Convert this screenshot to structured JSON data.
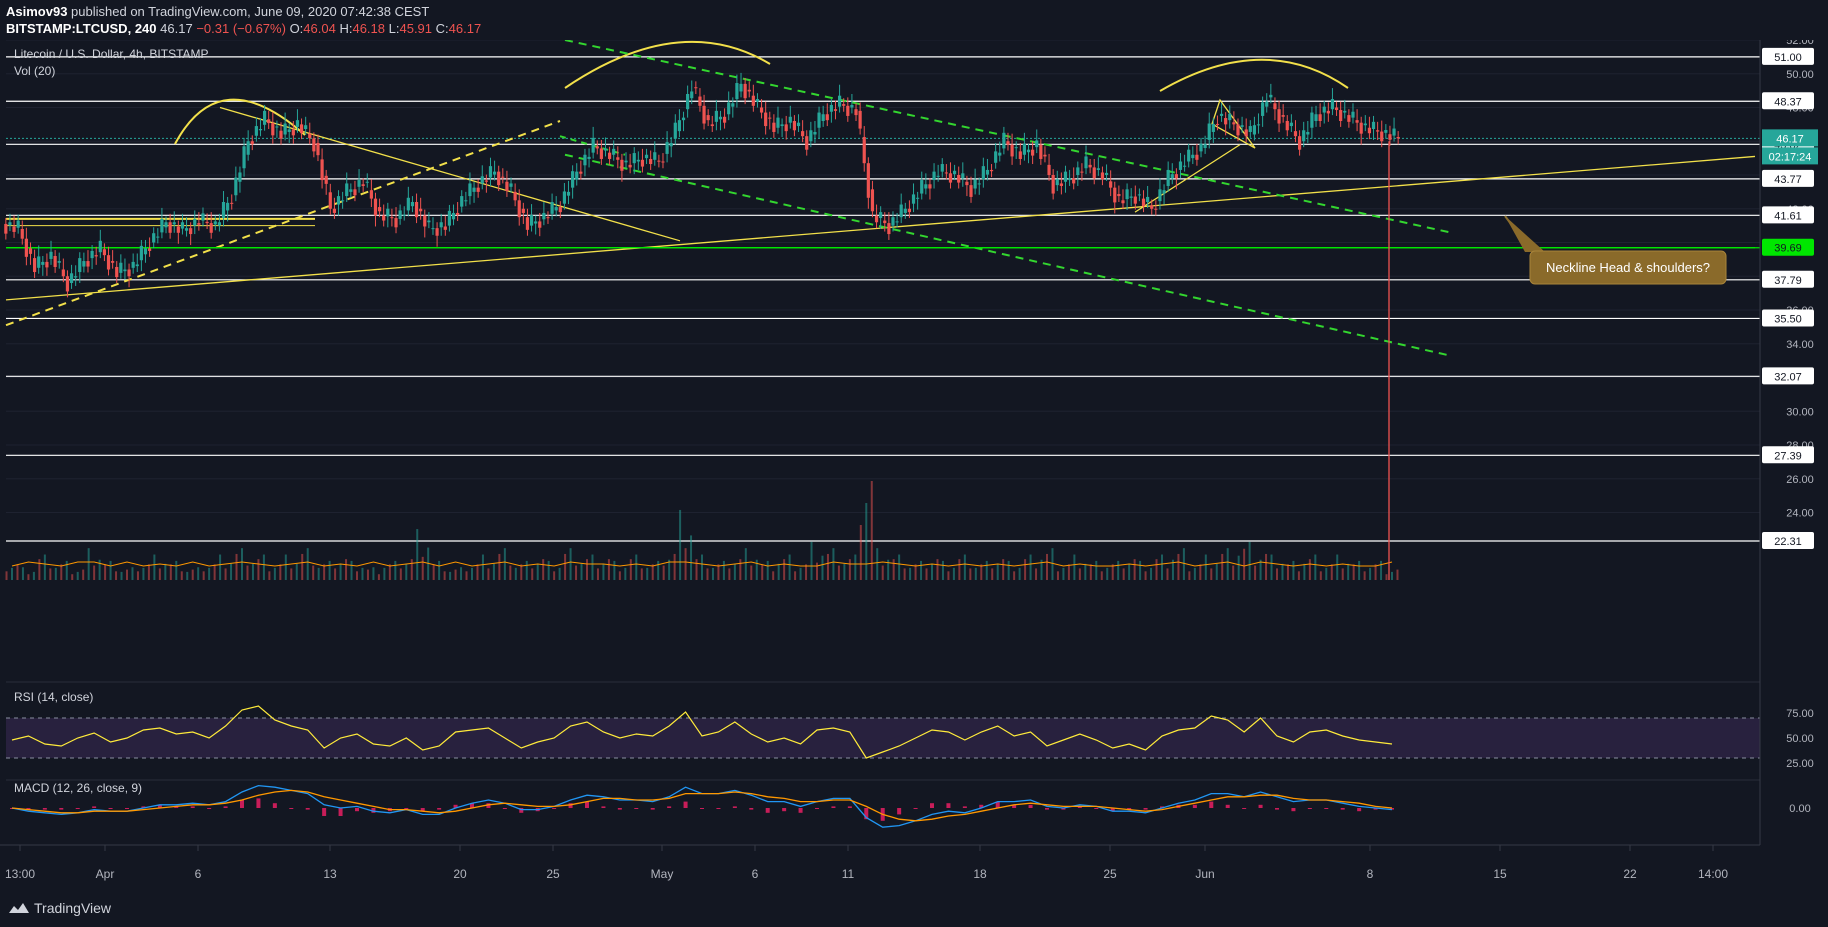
{
  "header": {
    "publisher": "Asimov93",
    "published_text": "published on TradingView.com, June 09, 2020 07:42:38 CEST",
    "symbol": "BITSTAMP:LTCUSD",
    "interval": "240",
    "last": "46.17",
    "change": "−0.31 (−0.67%)",
    "o_label": "O:",
    "o": "46.04",
    "h_label": "H:",
    "h": "46.18",
    "l_label": "L:",
    "l": "45.91",
    "c_label": "C:",
    "c": "46.17"
  },
  "footer": {
    "brand": "TradingView"
  },
  "colors": {
    "bg": "#131722",
    "up": "#26a69a",
    "down": "#ef5350",
    "yellow": "#f2e04a",
    "green_dash": "#33d62f",
    "white": "#ffffff",
    "rsi": "#ffeb3b",
    "rsi_band": "#3a2a55",
    "macd": "#2196f3",
    "signal": "#ff9800",
    "hist_pos": "#e91e63",
    "hist_neg": "#e91e63",
    "axis_text": "#b2b5be"
  },
  "chart_data": {
    "type": "line",
    "title": "Litecoin / U.S. Dollar, 4h, BITSTAMP",
    "volume_label": "Vol (20)",
    "ylim": [
      20,
      52
    ],
    "y_ticks": [
      24,
      26,
      28,
      30,
      32,
      34,
      36,
      38,
      40,
      42,
      44,
      46,
      48,
      50,
      52
    ],
    "x_ticks": [
      "13:00",
      "Apr",
      "6",
      "13",
      "20",
      "25",
      "May",
      "6",
      "11",
      "18",
      "25",
      "Jun",
      "8",
      "15",
      "22",
      "14:00"
    ],
    "horizontal_levels": [
      51.0,
      48.37,
      45.82,
      43.77,
      41.61,
      39.69,
      37.79,
      35.5,
      32.07,
      27.39,
      22.31
    ],
    "level_colors": {
      "39.69": "#00e600"
    },
    "current_price": "46.17",
    "countdown": "02:17:24",
    "price_path": [
      {
        "d": 0,
        "p": 40.8
      },
      {
        "d": 1,
        "p": 38.5
      },
      {
        "d": 2,
        "p": 39.2
      },
      {
        "d": 3,
        "p": 37.6
      },
      {
        "d": 4,
        "p": 38.9
      },
      {
        "d": 5,
        "p": 39.6
      },
      {
        "d": 6,
        "p": 38.2
      },
      {
        "d": 7,
        "p": 38.6
      },
      {
        "d": 8,
        "p": 40.0
      },
      {
        "d": 9,
        "p": 41.2
      },
      {
        "d": 10,
        "p": 40.7
      },
      {
        "d": 11,
        "p": 41.3
      },
      {
        "d": 12,
        "p": 41.0
      },
      {
        "d": 13,
        "p": 42.8
      },
      {
        "d": 14,
        "p": 46.0
      },
      {
        "d": 15,
        "p": 47.3
      },
      {
        "d": 16,
        "p": 46.4
      },
      {
        "d": 17,
        "p": 47.0
      },
      {
        "d": 18,
        "p": 45.9
      },
      {
        "d": 19,
        "p": 42.0
      },
      {
        "d": 20,
        "p": 43.0
      },
      {
        "d": 21,
        "p": 43.6
      },
      {
        "d": 22,
        "p": 41.6
      },
      {
        "d": 23,
        "p": 41.4
      },
      {
        "d": 24,
        "p": 42.4
      },
      {
        "d": 25,
        "p": 40.8
      },
      {
        "d": 26,
        "p": 41.0
      },
      {
        "d": 27,
        "p": 42.5
      },
      {
        "d": 28,
        "p": 43.5
      },
      {
        "d": 29,
        "p": 44.2
      },
      {
        "d": 30,
        "p": 43.0
      },
      {
        "d": 31,
        "p": 41.0
      },
      {
        "d": 32,
        "p": 41.5
      },
      {
        "d": 33,
        "p": 42.3
      },
      {
        "d": 34,
        "p": 44.2
      },
      {
        "d": 35,
        "p": 45.7
      },
      {
        "d": 36,
        "p": 45.2
      },
      {
        "d": 37,
        "p": 44.6
      },
      {
        "d": 38,
        "p": 45.0
      },
      {
        "d": 39,
        "p": 44.8
      },
      {
        "d": 40,
        "p": 46.6
      },
      {
        "d": 41,
        "p": 49.2
      },
      {
        "d": 42,
        "p": 47.0
      },
      {
        "d": 43,
        "p": 47.6
      },
      {
        "d": 44,
        "p": 49.4
      },
      {
        "d": 45,
        "p": 48.0
      },
      {
        "d": 46,
        "p": 46.8
      },
      {
        "d": 47,
        "p": 47.2
      },
      {
        "d": 48,
        "p": 46.0
      },
      {
        "d": 49,
        "p": 47.6
      },
      {
        "d": 50,
        "p": 48.2
      },
      {
        "d": 51,
        "p": 47.8
      },
      {
        "d": 52,
        "p": 41.6
      },
      {
        "d": 53,
        "p": 41.0
      },
      {
        "d": 54,
        "p": 42.0
      },
      {
        "d": 55,
        "p": 43.2
      },
      {
        "d": 56,
        "p": 44.2
      },
      {
        "d": 57,
        "p": 44.0
      },
      {
        "d": 58,
        "p": 43.2
      },
      {
        "d": 59,
        "p": 44.3
      },
      {
        "d": 60,
        "p": 46.0
      },
      {
        "d": 61,
        "p": 45.2
      },
      {
        "d": 62,
        "p": 45.8
      },
      {
        "d": 63,
        "p": 43.4
      },
      {
        "d": 64,
        "p": 43.8
      },
      {
        "d": 65,
        "p": 44.6
      },
      {
        "d": 66,
        "p": 44.0
      },
      {
        "d": 67,
        "p": 42.5
      },
      {
        "d": 68,
        "p": 42.8
      },
      {
        "d": 69,
        "p": 42.0
      },
      {
        "d": 70,
        "p": 43.8
      },
      {
        "d": 71,
        "p": 44.8
      },
      {
        "d": 72,
        "p": 45.6
      },
      {
        "d": 73,
        "p": 47.5
      },
      {
        "d": 74,
        "p": 47.0
      },
      {
        "d": 75,
        "p": 46.4
      },
      {
        "d": 76,
        "p": 48.6
      },
      {
        "d": 77,
        "p": 47.2
      },
      {
        "d": 78,
        "p": 46.0
      },
      {
        "d": 79,
        "p": 47.6
      },
      {
        "d": 80,
        "p": 48.0
      },
      {
        "d": 81,
        "p": 47.4
      },
      {
        "d": 82,
        "p": 46.8
      },
      {
        "d": 83,
        "p": 46.5
      },
      {
        "d": 84,
        "p": 46.17
      }
    ],
    "volume_values": [
      3,
      2,
      4,
      3,
      2,
      5,
      3,
      2,
      3,
      4,
      3,
      2,
      3,
      4,
      5,
      4,
      3,
      4,
      5,
      3,
      4,
      3,
      2,
      3,
      4,
      8,
      3,
      2,
      3,
      4,
      5,
      3,
      4,
      3,
      5,
      4,
      4,
      3,
      4,
      3,
      5,
      11,
      4,
      3,
      4,
      5,
      3,
      4,
      3,
      6,
      5,
      4,
      19,
      5,
      4,
      3,
      4,
      3,
      4,
      3,
      4,
      3,
      4,
      5,
      3,
      4,
      3,
      3,
      4,
      3,
      4,
      5,
      3,
      4,
      5,
      6,
      5,
      4,
      3,
      4,
      3,
      4,
      3,
      3,
      2
    ],
    "rsi": {
      "label": "RSI (14, close)",
      "y_ticks": [
        "75.00",
        "50.00",
        "25.00"
      ],
      "upper": 70,
      "lower": 30,
      "values": [
        48,
        52,
        44,
        42,
        50,
        55,
        46,
        50,
        58,
        60,
        54,
        56,
        50,
        62,
        78,
        82,
        68,
        62,
        58,
        40,
        50,
        54,
        44,
        42,
        50,
        38,
        42,
        56,
        58,
        60,
        50,
        40,
        46,
        50,
        62,
        66,
        56,
        50,
        54,
        52,
        62,
        76,
        52,
        56,
        66,
        54,
        46,
        50,
        44,
        58,
        60,
        56,
        30,
        36,
        42,
        50,
        58,
        56,
        48,
        56,
        62,
        52,
        56,
        42,
        48,
        54,
        48,
        40,
        44,
        38,
        52,
        58,
        60,
        72,
        68,
        56,
        70,
        52,
        46,
        56,
        58,
        52,
        48,
        46,
        44
      ]
    },
    "macd": {
      "label": "MACD (12, 26, close, 9)",
      "y_ticks": [
        "0.00"
      ],
      "macd": [
        0.0,
        -0.2,
        -0.3,
        -0.4,
        -0.3,
        -0.1,
        -0.2,
        -0.2,
        0.0,
        0.2,
        0.2,
        0.3,
        0.2,
        0.4,
        1.0,
        1.4,
        1.3,
        1.1,
        0.9,
        0.2,
        0.0,
        0.1,
        -0.2,
        -0.3,
        -0.1,
        -0.4,
        -0.4,
        0.0,
        0.3,
        0.5,
        0.3,
        -0.1,
        -0.1,
        0.1,
        0.5,
        0.8,
        0.7,
        0.5,
        0.5,
        0.4,
        0.7,
        1.3,
        0.9,
        0.9,
        1.1,
        0.8,
        0.4,
        0.4,
        0.1,
        0.4,
        0.6,
        0.6,
        -0.6,
        -1.2,
        -1.1,
        -0.8,
        -0.4,
        -0.2,
        -0.3,
        0.0,
        0.4,
        0.4,
        0.5,
        0.1,
        0.0,
        0.2,
        0.1,
        -0.2,
        -0.2,
        -0.3,
        0.0,
        0.3,
        0.5,
        0.9,
        0.9,
        0.7,
        1.0,
        0.7,
        0.4,
        0.5,
        0.5,
        0.3,
        0.1,
        0.0,
        -0.1
      ],
      "signal": [
        0.0,
        -0.1,
        -0.2,
        -0.3,
        -0.3,
        -0.2,
        -0.2,
        -0.2,
        -0.1,
        0.0,
        0.1,
        0.2,
        0.2,
        0.3,
        0.5,
        0.8,
        1.0,
        1.1,
        1.0,
        0.7,
        0.5,
        0.3,
        0.1,
        -0.1,
        -0.1,
        -0.2,
        -0.3,
        -0.2,
        0.0,
        0.2,
        0.3,
        0.2,
        0.1,
        0.1,
        0.2,
        0.4,
        0.6,
        0.6,
        0.5,
        0.5,
        0.6,
        0.9,
        0.9,
        0.9,
        1.0,
        0.9,
        0.7,
        0.6,
        0.4,
        0.4,
        0.5,
        0.5,
        0.1,
        -0.4,
        -0.7,
        -0.8,
        -0.7,
        -0.5,
        -0.4,
        -0.2,
        0.0,
        0.2,
        0.3,
        0.2,
        0.1,
        0.1,
        0.1,
        0.0,
        -0.1,
        -0.2,
        -0.1,
        0.1,
        0.3,
        0.5,
        0.7,
        0.7,
        0.8,
        0.8,
        0.6,
        0.5,
        0.5,
        0.4,
        0.3,
        0.1,
        0.0
      ]
    },
    "annotation": "Neckline Head & shoulders?"
  }
}
